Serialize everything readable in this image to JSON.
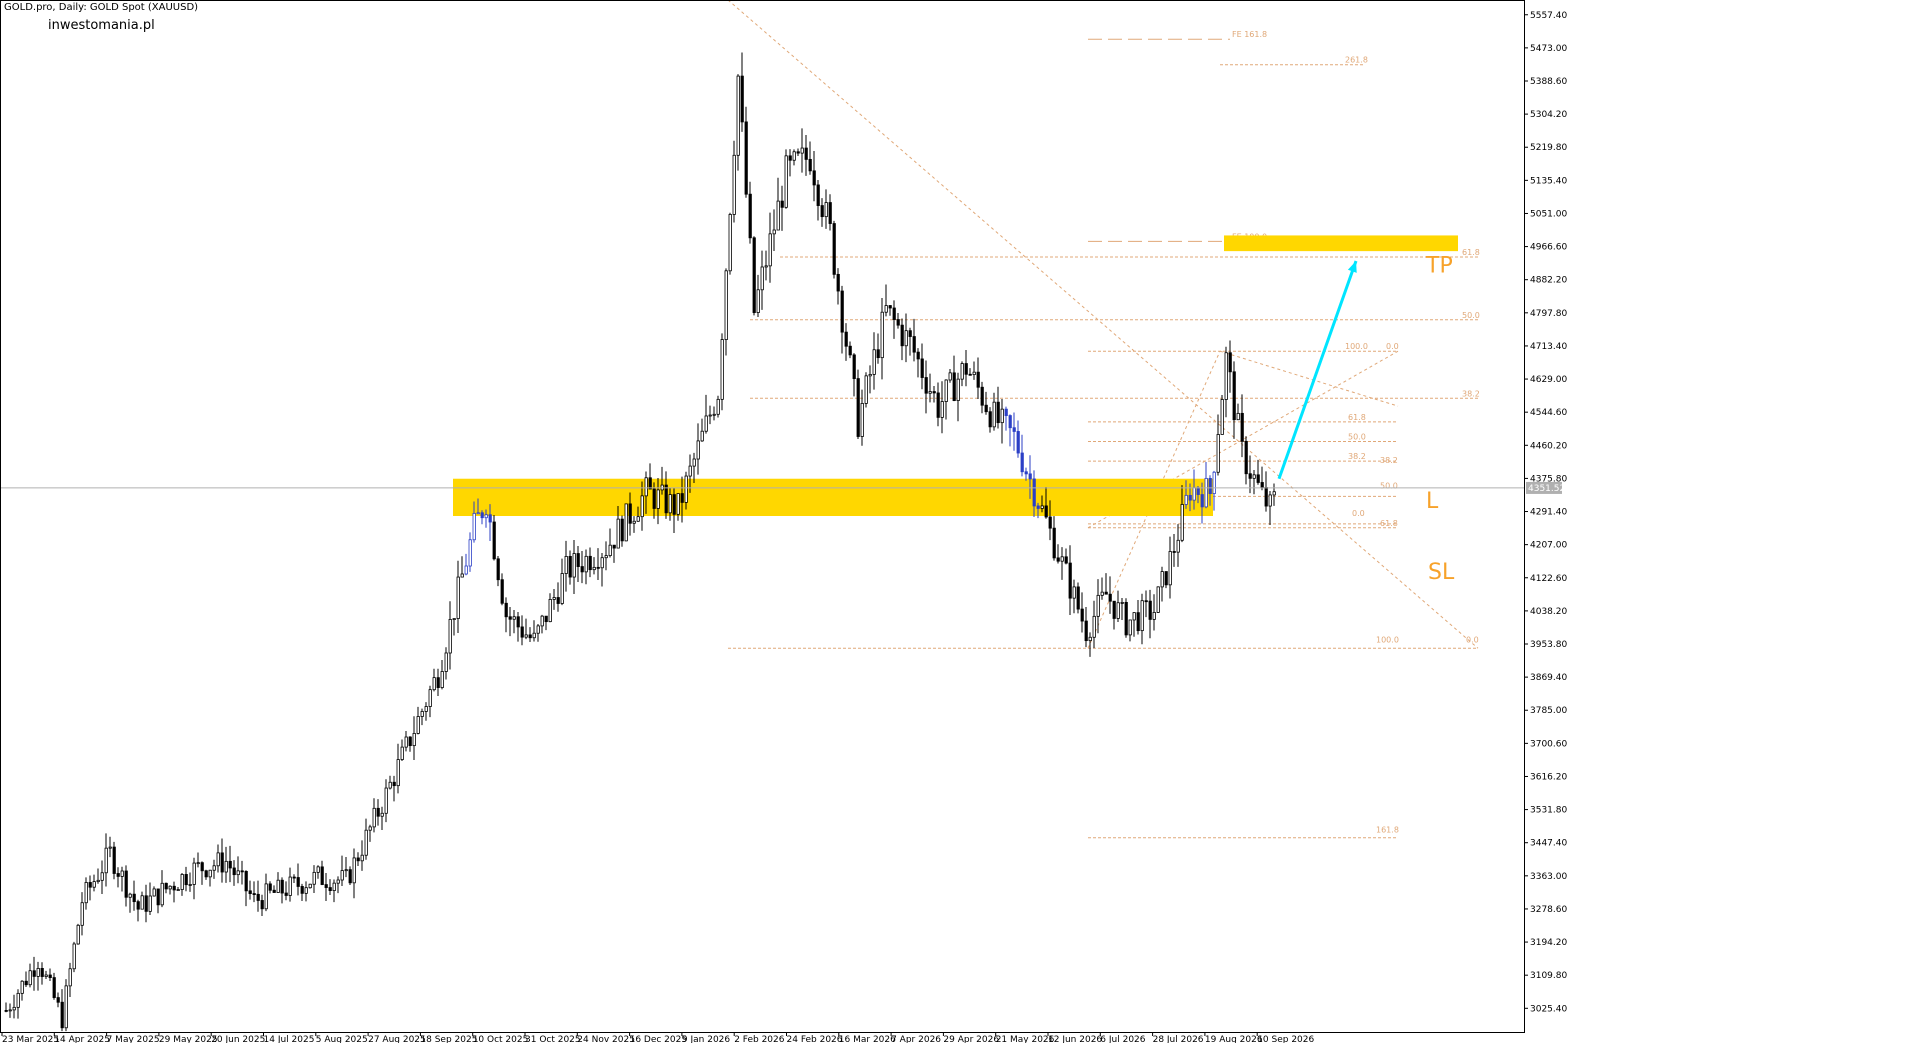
{
  "header": {
    "symbol_line": "GOLD.pro, Daily:  GOLD Spot (XAUUSD)",
    "site": "inwestomania.pl"
  },
  "chart_data": {
    "type": "candlestick",
    "title": "GOLD.pro, Daily:  GOLD Spot (XAUUSD)",
    "y_axis_ticks": [
      5557.4,
      5473.0,
      5388.6,
      5304.2,
      5219.8,
      5135.4,
      5051.0,
      4966.6,
      4882.2,
      4797.8,
      4713.4,
      4629.0,
      4544.6,
      4460.2,
      4375.8,
      4291.4,
      4207.0,
      4122.6,
      4038.2,
      3953.8,
      3869.4,
      3785.0,
      3700.6,
      3616.2,
      3531.8,
      3447.4,
      3363.0,
      3278.6,
      3194.2,
      3109.8,
      3025.4
    ],
    "ylim": [
      2965,
      5595
    ],
    "x_axis_labels": [
      "23 Mar 2025",
      "14 Apr 2025",
      "7 May 2025",
      "29 May 2025",
      "20 Jun 2025",
      "14 Jul 2025",
      "5 Aug 2025",
      "27 Aug 2025",
      "18 Sep 2025",
      "10 Oct 2025",
      "31 Oct 2025",
      "24 Nov 2025",
      "16 Dec 2025",
      "9 Jan 2026",
      "2 Feb 2026",
      "24 Feb 2026",
      "16 Mar 2026",
      "7 Apr 2026",
      "29 Apr 2026",
      "21 May 2026",
      "12 Jun 2026",
      "6 Jul 2026",
      "28 Jul 2026",
      "19 Aug 2026",
      "10 Sep 2026"
    ],
    "current_price": "4351.52",
    "price_anchors": [
      {
        "i": 0,
        "p": 3020
      },
      {
        "i": 8,
        "p": 3150
      },
      {
        "i": 14,
        "p": 3000
      },
      {
        "i": 19,
        "p": 3300
      },
      {
        "i": 26,
        "p": 3420
      },
      {
        "i": 33,
        "p": 3280
      },
      {
        "i": 40,
        "p": 3330
      },
      {
        "i": 47,
        "p": 3380
      },
      {
        "i": 55,
        "p": 3400
      },
      {
        "i": 62,
        "p": 3300
      },
      {
        "i": 70,
        "p": 3330
      },
      {
        "i": 78,
        "p": 3360
      },
      {
        "i": 85,
        "p": 3350
      },
      {
        "i": 95,
        "p": 3570
      },
      {
        "i": 108,
        "p": 3880
      },
      {
        "i": 117,
        "p": 4250
      },
      {
        "i": 120,
        "p": 4320
      },
      {
        "i": 125,
        "p": 4030
      },
      {
        "i": 132,
        "p": 3960
      },
      {
        "i": 140,
        "p": 4140
      },
      {
        "i": 150,
        "p": 4200
      },
      {
        "i": 160,
        "p": 4340
      },
      {
        "i": 168,
        "p": 4300
      },
      {
        "i": 178,
        "p": 4600
      },
      {
        "i": 183,
        "p": 5400
      },
      {
        "i": 187,
        "p": 4800
      },
      {
        "i": 195,
        "p": 5150
      },
      {
        "i": 201,
        "p": 5200
      },
      {
        "i": 206,
        "p": 5000
      },
      {
        "i": 213,
        "p": 4520
      },
      {
        "i": 220,
        "p": 4800
      },
      {
        "i": 226,
        "p": 4720
      },
      {
        "i": 233,
        "p": 4560
      },
      {
        "i": 240,
        "p": 4660
      },
      {
        "i": 247,
        "p": 4530
      },
      {
        "i": 252,
        "p": 4480
      },
      {
        "i": 258,
        "p": 4320
      },
      {
        "i": 265,
        "p": 4130
      },
      {
        "i": 270,
        "p": 3990
      },
      {
        "i": 275,
        "p": 4080
      },
      {
        "i": 280,
        "p": 4010
      },
      {
        "i": 287,
        "p": 4040
      },
      {
        "i": 292,
        "p": 4200
      },
      {
        "i": 296,
        "p": 4350
      },
      {
        "i": 301,
        "p": 4340
      },
      {
        "i": 305,
        "p": 4680
      },
      {
        "i": 309,
        "p": 4440
      },
      {
        "i": 314,
        "p": 4330
      },
      {
        "i": 316,
        "p": 4300
      },
      {
        "i": 317,
        "p": 4320
      }
    ],
    "zone": {
      "label_entry": "L",
      "label_tp": "TP",
      "label_sl": "SL"
    },
    "fib_labels": {
      "top_100": "100.0",
      "fe161": "FE 161.8",
      "fe261": "261.8",
      "fe100": "FE 100.0",
      "r618_top": "61.8",
      "r50_top": "50.0",
      "r382_top": "38.2",
      "small_100": "100.0",
      "small_0": "0.0",
      "small_618": "61.8",
      "small_50": "50.0",
      "small_382": "38.2",
      "small_382b": "38.2",
      "small_50b": "50.0",
      "small_0b": "0.0",
      "small_618b": "61.8",
      "bottom_100": "100.0",
      "bottom_0": "0.0",
      "ext_1618": "161.8"
    },
    "colors": {
      "zone": "#FFD700",
      "arrow": "#00E5FF",
      "fib": "#E0A878",
      "label_orange": "#F7A22A",
      "candle_up": "#000000",
      "candle_down": "#000000",
      "highlight": "#2B3FC6"
    }
  }
}
